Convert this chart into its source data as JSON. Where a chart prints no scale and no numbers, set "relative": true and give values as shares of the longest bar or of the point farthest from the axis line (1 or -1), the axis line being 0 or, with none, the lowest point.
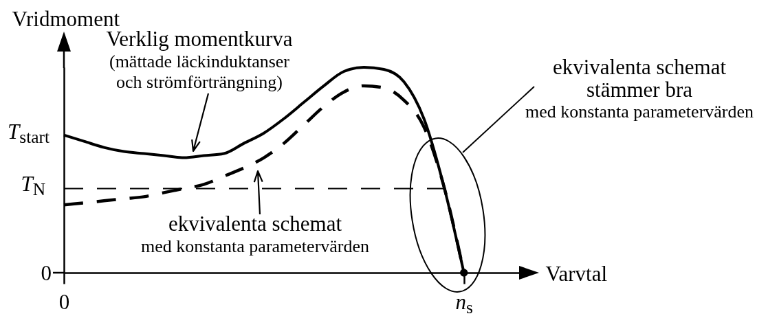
{
  "chart_data": {
    "type": "line",
    "relative": true,
    "xlabel": "Varvtal",
    "ylabel": "Vridmoment",
    "categories": [
      "0",
      null,
      null,
      null,
      null,
      null,
      null,
      null,
      null,
      null,
      null,
      null,
      null,
      null,
      null,
      null,
      null,
      null,
      null,
      null,
      "n$_{s}$",
      null,
      null,
      null
    ],
    "series": [
      {
        "color": "#000000",
        "line_style": "dashed",
        "values": [
          0.41,
          0.41,
          0.41,
          0.41,
          0.41,
          0.41,
          0.41,
          0.41,
          0.41,
          0.41,
          0.41,
          0.41,
          0.41,
          0.41,
          0.41,
          0.41,
          0.41,
          0.41,
          0.41,
          0.41,
          null,
          null,
          null,
          null
        ]
      },
      {
        "color": "#000000",
        "line_style": "solid",
        "values": [
          0.67,
          0.64,
          0.61,
          0.59,
          0.58,
          0.57,
          0.56,
          0.57,
          0.58,
          0.63,
          0.68,
          0.75,
          0.83,
          0.91,
          0.98,
          1,
          0.99,
          0.93,
          0.75,
          0.42,
          0,
          null,
          null,
          null
        ]
      },
      {
        "color": "#000000",
        "line_style": "dashed",
        "values": [
          0.33,
          0.34,
          0.35,
          0.36,
          0.37,
          0.39,
          0.41,
          0.43,
          0.47,
          0.51,
          0.56,
          0.63,
          0.72,
          0.81,
          0.88,
          0.91,
          0.9,
          0.84,
          0.71,
          0.42,
          0,
          null,
          null,
          null
        ]
      },
      {
        "type": "scatter",
        "marker": "circle",
        "color": "#000000",
        "x": [
          "n$_{s}$"
        ],
        "values": [
          0
        ]
      }
    ],
    "annotations": [
      "T$_{start}$",
      "T$_{N}$",
      "0",
      "Verklig momentkurva\n(mättade läckinduktanser\noch strömförträngning)",
      "ekvivalenta schemat\nmed konstanta parametervärden",
      "ekvivalenta schemat\nstämmer bra\nmed konstanta parametervärden"
    ]
  }
}
